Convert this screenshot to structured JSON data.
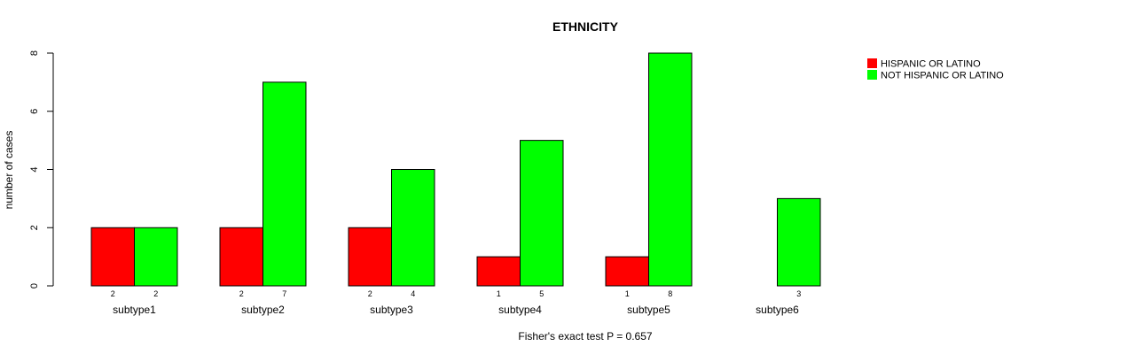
{
  "chart_data": {
    "type": "bar",
    "title": "ETHNICITY",
    "xlabel": "Fisher's exact test P = 0.657",
    "ylabel": "number of cases",
    "ylim": [
      0,
      8
    ],
    "yticks": [
      0,
      2,
      4,
      6,
      8
    ],
    "categories": [
      "subtype1",
      "subtype2",
      "subtype3",
      "subtype4",
      "subtype5",
      "subtype6"
    ],
    "series": [
      {
        "name": "HISPANIC OR LATINO",
        "color": "#ff0000",
        "values": [
          2,
          2,
          2,
          1,
          1,
          0
        ],
        "labels": [
          "2",
          "2",
          "2",
          "1",
          "1",
          ""
        ]
      },
      {
        "name": "NOT HISPANIC OR LATINO",
        "color": "#00ff00",
        "values": [
          2,
          7,
          4,
          5,
          8,
          3
        ],
        "labels": [
          "2",
          "7",
          "4",
          "5",
          "8",
          "3"
        ]
      }
    ],
    "legend_position": "top-right"
  }
}
